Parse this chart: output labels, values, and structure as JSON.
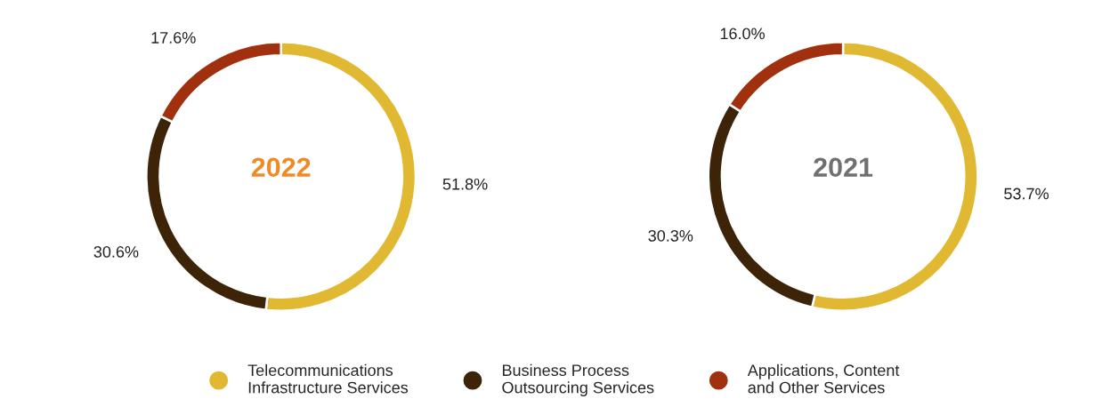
{
  "chart_data": [
    {
      "type": "donut",
      "title": "2022",
      "categories": [
        "Telecommunications Infrastructure Services",
        "Business Process Outsourcing Services",
        "Applications, Content and Other Services"
      ],
      "values": [
        51.8,
        30.6,
        17.6
      ],
      "colors": [
        "#e0b832",
        "#3d2308",
        "#a0300e"
      ],
      "value_labels": [
        "51.8%",
        "30.6%",
        "17.6%"
      ],
      "legend": "bottom"
    },
    {
      "type": "donut",
      "title": "2021",
      "values": [
        53.7,
        30.3,
        16.0
      ],
      "colors": [
        "#e0b832",
        "#3d2308",
        "#a0300e"
      ],
      "value_labels": [
        "53.7%",
        "30.3%",
        "16.0%"
      ]
    }
  ]
}
